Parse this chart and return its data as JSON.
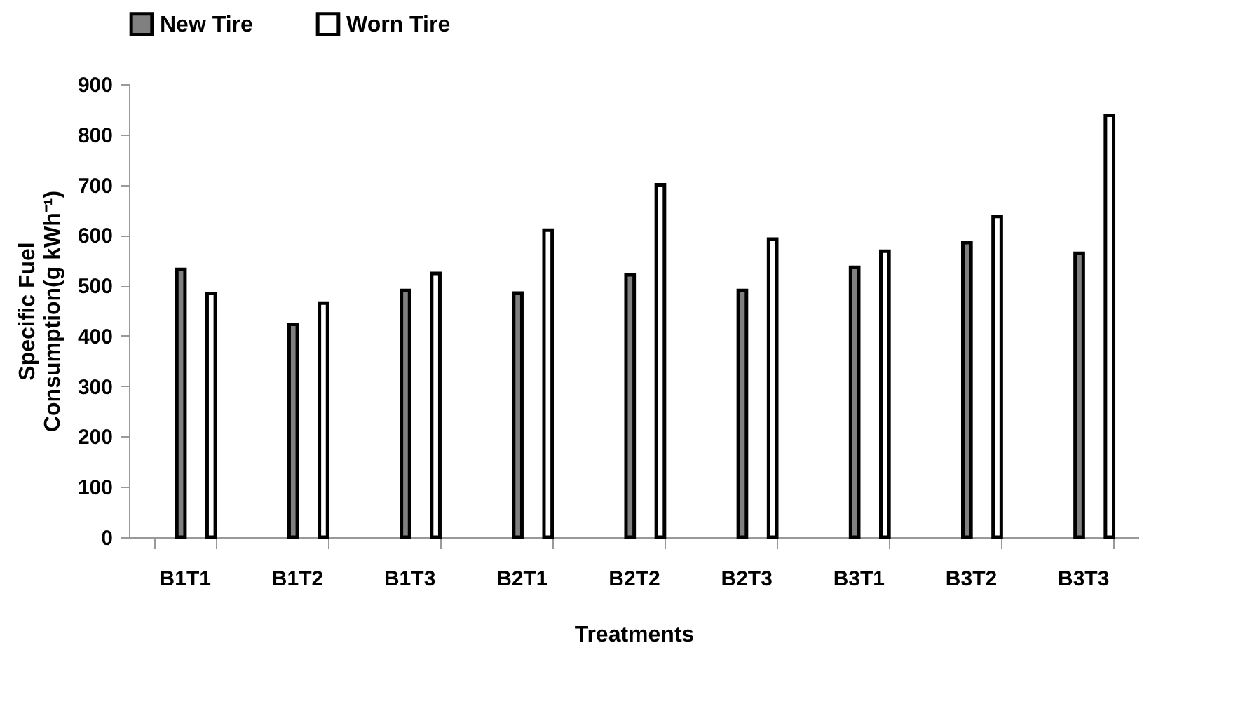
{
  "chart_data": {
    "type": "bar",
    "xlabel": "Treatments",
    "ylabel": "Specific Fuel Consumption(g kWh⁻¹)",
    "categories": [
      "B1T1",
      "B1T2",
      "B1T3",
      "B2T1",
      "B2T2",
      "B2T3",
      "B3T1",
      "B3T2",
      "B3T3"
    ],
    "series": [
      {
        "name": "New Tire",
        "color": "#808080",
        "values": [
          532,
          423,
          490,
          485,
          521,
          490,
          536,
          585,
          564
        ]
      },
      {
        "name": "Worn Tire",
        "color": "#ffffff",
        "values": [
          484,
          465,
          524,
          610,
          700,
          592,
          568,
          637,
          838
        ]
      }
    ],
    "ylim": [
      0,
      900
    ],
    "yticks": [
      0,
      100,
      200,
      300,
      400,
      500,
      600,
      700,
      800,
      900
    ],
    "grid": false,
    "legend": "top"
  }
}
